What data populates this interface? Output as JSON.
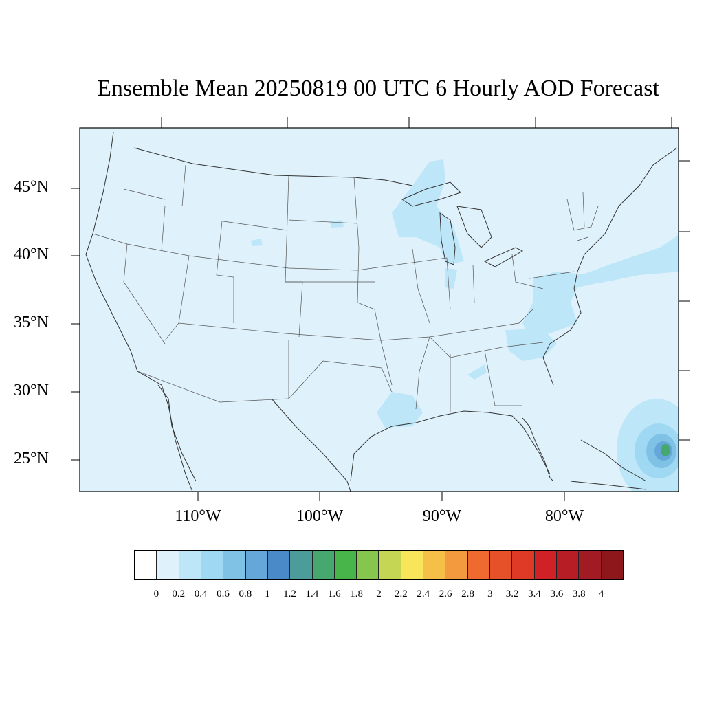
{
  "title": "Ensemble Mean 20250819 00 UTC 6 Hourly AOD Forecast",
  "map": {
    "lat_labels": [
      "45°N",
      "40°N",
      "35°N",
      "30°N",
      "25°N"
    ],
    "lon_labels": [
      "110°W",
      "100°W",
      "90°W",
      "80°W"
    ],
    "background_color": "#dff1fb",
    "land_line_color": "#333333"
  },
  "colorbar": {
    "levels": [
      "0",
      "0.2",
      "0.4",
      "0.6",
      "0.8",
      "1",
      "1.2",
      "1.4",
      "1.6",
      "1.8",
      "2",
      "2.2",
      "2.4",
      "2.6",
      "2.8",
      "3",
      "3.2",
      "3.4",
      "3.6",
      "3.8",
      "4"
    ],
    "colors": [
      "#ffffff",
      "#dff1fb",
      "#bde6f8",
      "#9fd8f3",
      "#80c1e6",
      "#66a7da",
      "#4b8ac8",
      "#4b9c9a",
      "#46a86f",
      "#48b54b",
      "#86c54e",
      "#c4d653",
      "#f8e55a",
      "#f6c048",
      "#f39a3f",
      "#ee6a2f",
      "#e75129",
      "#de3a26",
      "#d02126",
      "#b71d24",
      "#a21b22",
      "#8e171b"
    ]
  }
}
